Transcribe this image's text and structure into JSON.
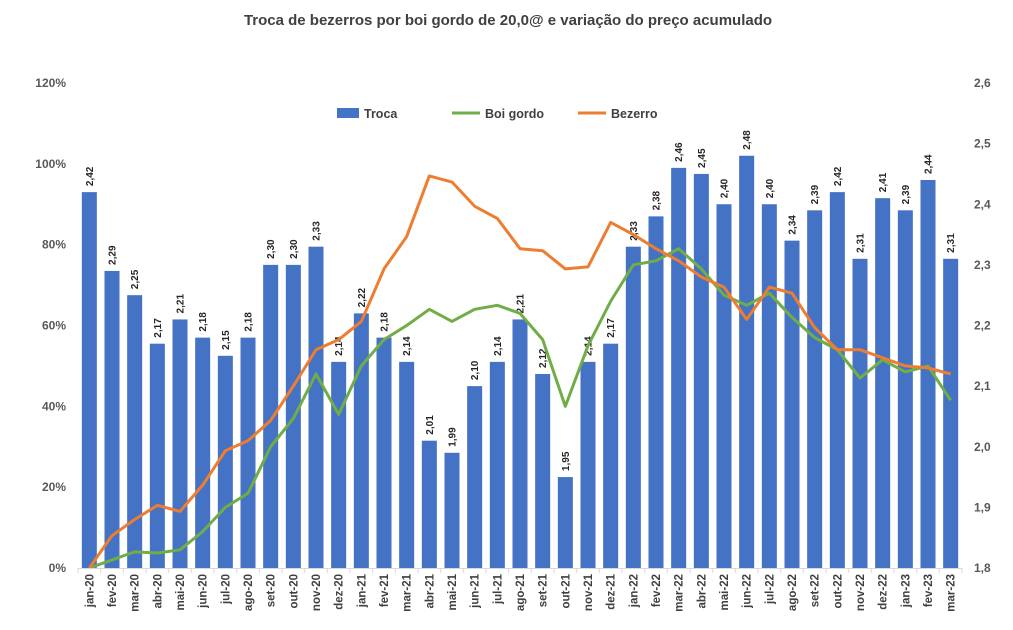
{
  "chart_data": {
    "type": "bar",
    "title": "Troca de bezerros por boi gordo de 20,0@ e variação do preço acumulado",
    "categories": [
      "jan-20",
      "fev-20",
      "mar-20",
      "abr-20",
      "mai-20",
      "jun-20",
      "jul-20",
      "ago-20",
      "set-20",
      "out-20",
      "nov-20",
      "dez-20",
      "jan-21",
      "fev-21",
      "mar-21",
      "abr-21",
      "mai-21",
      "jun-21",
      "jul-21",
      "ago-21",
      "set-21",
      "out-21",
      "nov-21",
      "dez-21",
      "jan-22",
      "fev-22",
      "mar-22",
      "abr-22",
      "mai-22",
      "jun-22",
      "jul-22",
      "ago-22",
      "set-22",
      "out-22",
      "nov-22",
      "dez-22",
      "jan-23",
      "fev-23",
      "mar-23"
    ],
    "series": [
      {
        "name": "Troca",
        "type": "bar",
        "axis": "right",
        "color": "#4472C4",
        "values": [
          2.42,
          2.29,
          2.25,
          2.17,
          2.21,
          2.18,
          2.15,
          2.18,
          2.3,
          2.3,
          2.33,
          2.14,
          2.22,
          2.18,
          2.14,
          2.01,
          1.99,
          2.1,
          2.14,
          2.21,
          2.12,
          1.95,
          2.14,
          2.17,
          2.33,
          2.38,
          2.46,
          2.45,
          2.4,
          2.48,
          2.4,
          2.34,
          2.39,
          2.42,
          2.31,
          2.41,
          2.39,
          2.44,
          2.31
        ],
        "labels": [
          "2,42",
          "2,29",
          "2,25",
          "2,17",
          "2,21",
          "2,18",
          "2,15",
          "2,18",
          "2,30",
          "2,30",
          "2,33",
          "2,14",
          "2,22",
          "2,18",
          "2,14",
          "2,01",
          "1,99",
          "2,10",
          "2,14",
          "2,21",
          "2,12",
          "1,95",
          "2,14",
          "2,17",
          "2,33",
          "2,38",
          "2,46",
          "2,45",
          "2,40",
          "2,48",
          "2,40",
          "2,34",
          "2,39",
          "2,42",
          "2,31",
          "2,41",
          "2,39",
          "2,44",
          "2,31"
        ]
      },
      {
        "name": "Boi gordo",
        "type": "line",
        "axis": "left",
        "color": "#70AD47",
        "values": [
          0,
          2,
          4,
          3.7,
          4.5,
          9,
          15,
          18.5,
          30,
          37,
          48,
          38,
          50,
          56.5,
          60,
          64,
          61,
          64,
          65,
          63,
          56.5,
          40,
          55,
          66,
          75,
          76,
          79,
          74,
          67.5,
          65,
          68,
          62,
          57,
          54,
          47,
          51.5,
          48.5,
          50,
          41.5
        ]
      },
      {
        "name": "Bezerro",
        "type": "line",
        "axis": "left",
        "color": "#ED7D31",
        "values": [
          0,
          8,
          12,
          15.5,
          14,
          20.5,
          29,
          31.5,
          36.5,
          45,
          54,
          56.5,
          61,
          74,
          82,
          97,
          95.5,
          89.5,
          86.5,
          79,
          78.5,
          74,
          74.5,
          85.5,
          82.5,
          79,
          76,
          72,
          69.5,
          61.5,
          69.5,
          68,
          59.5,
          54,
          54,
          52,
          50,
          49.5,
          48
        ]
      }
    ],
    "left_axis": {
      "ylim": [
        0,
        120
      ],
      "ticks": [
        "0%",
        "20%",
        "40%",
        "60%",
        "80%",
        "100%",
        "120%"
      ],
      "tick_values": [
        0,
        20,
        40,
        60,
        80,
        100,
        120
      ]
    },
    "right_axis": {
      "ylim": [
        1.8,
        2.6
      ],
      "ticks": [
        "1,8",
        "1,9",
        "2,0",
        "2,1",
        "2,2",
        "2,3",
        "2,4",
        "2,5",
        "2,6"
      ],
      "tick_values": [
        1.8,
        1.9,
        2.0,
        2.1,
        2.2,
        2.3,
        2.4,
        2.5,
        2.6
      ]
    },
    "legend": {
      "placement": "top-center",
      "entries": [
        "Troca",
        "Boi gordo",
        "Bezerro"
      ]
    },
    "grid": false
  }
}
